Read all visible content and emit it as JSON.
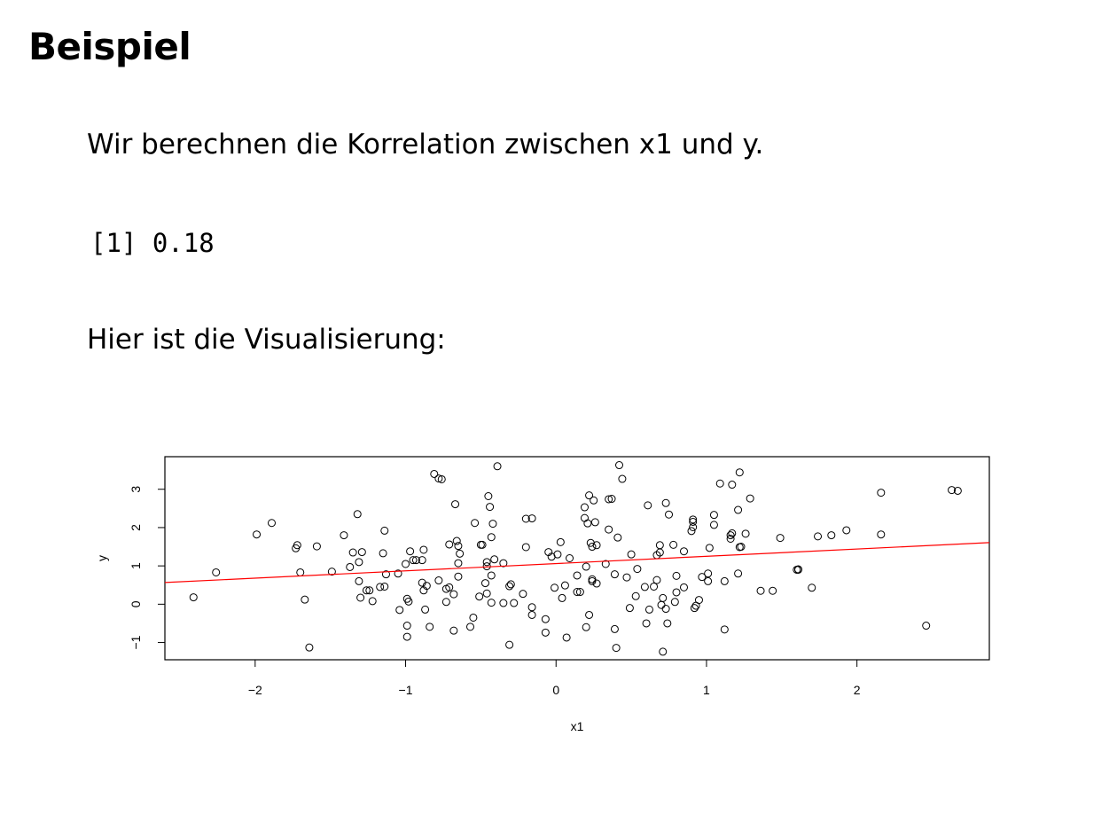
{
  "slide": {
    "title": "Beispiel",
    "intro": "Wir berechnen die Korrelation zwischen x1 und y.",
    "output": "[1] 0.18",
    "viz_intro": "Hier ist die Visualisierung:"
  },
  "colors": {
    "points": "#000000",
    "regression_line": "#ff0000",
    "background": "#ffffff"
  },
  "chart_data": {
    "type": "scatter",
    "title": "",
    "xlabel": "x1",
    "ylabel": "y",
    "xlim": [
      -2.6,
      2.88
    ],
    "ylim": [
      -1.45,
      3.85
    ],
    "xticks": [
      -2,
      -1,
      0,
      1,
      2
    ],
    "xtick_labels": [
      "−2",
      "−1",
      "0",
      "1",
      "2"
    ],
    "yticks": [
      -1,
      0,
      1,
      2,
      3
    ],
    "ytick_labels": [
      "−1",
      "0",
      "1",
      "2",
      "3"
    ],
    "regression_line": {
      "intercept": 1.06,
      "slope": 0.19
    },
    "grid": false,
    "points": [
      [
        -2.41,
        0.18
      ],
      [
        -2.26,
        0.83
      ],
      [
        -1.99,
        1.82
      ],
      [
        -1.89,
        2.12
      ],
      [
        -1.73,
        1.46
      ],
      [
        -1.72,
        1.54
      ],
      [
        -1.7,
        0.83
      ],
      [
        -1.67,
        0.12
      ],
      [
        -1.64,
        -1.13
      ],
      [
        -1.59,
        1.51
      ],
      [
        -1.49,
        0.85
      ],
      [
        -1.41,
        1.8
      ],
      [
        -1.37,
        0.97
      ],
      [
        -1.35,
        1.35
      ],
      [
        -1.32,
        2.35
      ],
      [
        -1.31,
        0.6
      ],
      [
        -1.31,
        1.1
      ],
      [
        -1.29,
        1.36
      ],
      [
        -1.3,
        0.17
      ],
      [
        -1.26,
        0.36
      ],
      [
        -1.24,
        0.36
      ],
      [
        -1.22,
        0.08
      ],
      [
        -1.17,
        0.45
      ],
      [
        -1.15,
        1.33
      ],
      [
        -1.14,
        1.92
      ],
      [
        -1.14,
        0.46
      ],
      [
        -1.13,
        0.78
      ],
      [
        -1.05,
        0.8
      ],
      [
        -1.04,
        -0.15
      ],
      [
        -1.0,
        1.05
      ],
      [
        -0.99,
        0.14
      ],
      [
        -0.99,
        -0.85
      ],
      [
        -0.99,
        -0.56
      ],
      [
        -0.98,
        0.07
      ],
      [
        -0.97,
        1.38
      ],
      [
        -0.95,
        1.15
      ],
      [
        -0.93,
        1.15
      ],
      [
        -0.89,
        1.15
      ],
      [
        -0.89,
        0.56
      ],
      [
        -0.88,
        1.42
      ],
      [
        -0.88,
        0.36
      ],
      [
        -0.87,
        -0.14
      ],
      [
        -0.86,
        0.48
      ],
      [
        -0.84,
        -0.59
      ],
      [
        -0.81,
        3.4
      ],
      [
        -0.78,
        0.62
      ],
      [
        -0.78,
        3.28
      ],
      [
        -0.76,
        3.26
      ],
      [
        -0.73,
        0.06
      ],
      [
        -0.73,
        0.4
      ],
      [
        -0.71,
        0.44
      ],
      [
        -0.71,
        1.56
      ],
      [
        -0.68,
        0.26
      ],
      [
        -0.68,
        -0.69
      ],
      [
        -0.67,
        2.61
      ],
      [
        -0.66,
        1.65
      ],
      [
        -0.65,
        1.52
      ],
      [
        -0.65,
        0.72
      ],
      [
        -0.65,
        1.07
      ],
      [
        -0.64,
        1.32
      ],
      [
        -0.57,
        -0.59
      ],
      [
        -0.55,
        -0.35
      ],
      [
        -0.54,
        2.12
      ],
      [
        -0.51,
        0.2
      ],
      [
        -0.5,
        1.55
      ],
      [
        -0.49,
        1.55
      ],
      [
        -0.47,
        0.55
      ],
      [
        -0.46,
        0.99
      ],
      [
        -0.46,
        1.1
      ],
      [
        -0.46,
        0.28
      ],
      [
        -0.45,
        2.82
      ],
      [
        -0.44,
        2.54
      ],
      [
        -0.43,
        1.75
      ],
      [
        -0.43,
        0.04
      ],
      [
        -0.42,
        2.1
      ],
      [
        -0.41,
        1.17
      ],
      [
        -0.43,
        0.75
      ],
      [
        -0.39,
        3.6
      ],
      [
        -0.35,
        1.07
      ],
      [
        -0.35,
        0.03
      ],
      [
        -0.31,
        -1.06
      ],
      [
        -0.31,
        0.47
      ],
      [
        -0.3,
        0.52
      ],
      [
        -0.28,
        0.03
      ],
      [
        -0.22,
        0.27
      ],
      [
        -0.2,
        1.49
      ],
      [
        -0.2,
        2.23
      ],
      [
        -0.16,
        2.24
      ],
      [
        -0.16,
        -0.28
      ],
      [
        -0.16,
        -0.08
      ],
      [
        -0.07,
        -0.39
      ],
      [
        -0.07,
        -0.74
      ],
      [
        -0.05,
        1.36
      ],
      [
        -0.03,
        1.24
      ],
      [
        -0.01,
        0.43
      ],
      [
        0.01,
        1.3
      ],
      [
        0.03,
        1.62
      ],
      [
        0.04,
        0.16
      ],
      [
        0.06,
        0.49
      ],
      [
        0.07,
        -0.87
      ],
      [
        0.09,
        1.2
      ],
      [
        0.14,
        0.75
      ],
      [
        0.14,
        0.32
      ],
      [
        0.16,
        0.32
      ],
      [
        0.19,
        2.25
      ],
      [
        0.19,
        2.53
      ],
      [
        0.2,
        0.98
      ],
      [
        0.2,
        -0.6
      ],
      [
        0.21,
        2.11
      ],
      [
        0.22,
        -0.28
      ],
      [
        0.22,
        2.84
      ],
      [
        0.23,
        1.6
      ],
      [
        0.24,
        1.5
      ],
      [
        0.24,
        0.6
      ],
      [
        0.24,
        0.65
      ],
      [
        0.25,
        2.71
      ],
      [
        0.26,
        2.14
      ],
      [
        0.27,
        1.54
      ],
      [
        0.27,
        0.54
      ],
      [
        0.33,
        1.05
      ],
      [
        0.35,
        1.95
      ],
      [
        0.35,
        2.74
      ],
      [
        0.37,
        2.75
      ],
      [
        0.39,
        -0.65
      ],
      [
        0.39,
        0.78
      ],
      [
        0.4,
        -1.14
      ],
      [
        0.41,
        1.74
      ],
      [
        0.42,
        3.63
      ],
      [
        0.44,
        3.27
      ],
      [
        0.47,
        0.7
      ],
      [
        0.49,
        -0.1
      ],
      [
        0.5,
        1.3
      ],
      [
        0.53,
        0.21
      ],
      [
        0.54,
        0.92
      ],
      [
        0.59,
        0.45
      ],
      [
        0.6,
        -0.5
      ],
      [
        0.61,
        2.58
      ],
      [
        0.62,
        -0.14
      ],
      [
        0.65,
        0.46
      ],
      [
        0.67,
        1.28
      ],
      [
        0.67,
        0.63
      ],
      [
        0.69,
        1.35
      ],
      [
        0.69,
        1.54
      ],
      [
        0.7,
        -0.02
      ],
      [
        0.71,
        0.16
      ],
      [
        0.71,
        -1.24
      ],
      [
        0.73,
        -0.12
      ],
      [
        0.73,
        2.64
      ],
      [
        0.74,
        -0.5
      ],
      [
        0.75,
        2.34
      ],
      [
        0.78,
        1.55
      ],
      [
        0.79,
        0.06
      ],
      [
        0.8,
        0.31
      ],
      [
        0.8,
        0.74
      ],
      [
        0.85,
        1.38
      ],
      [
        0.85,
        0.44
      ],
      [
        0.9,
        1.91
      ],
      [
        0.91,
        2.01
      ],
      [
        0.91,
        2.21
      ],
      [
        0.91,
        2.15
      ],
      [
        0.92,
        -0.1
      ],
      [
        0.93,
        -0.04
      ],
      [
        0.95,
        0.11
      ],
      [
        0.97,
        0.71
      ],
      [
        1.01,
        0.6
      ],
      [
        1.01,
        0.8
      ],
      [
        1.02,
        1.47
      ],
      [
        1.05,
        2.33
      ],
      [
        1.05,
        2.07
      ],
      [
        1.09,
        3.15
      ],
      [
        1.12,
        0.6
      ],
      [
        1.12,
        -0.66
      ],
      [
        1.16,
        1.8
      ],
      [
        1.16,
        1.71
      ],
      [
        1.17,
        3.12
      ],
      [
        1.17,
        1.85
      ],
      [
        1.21,
        0.8
      ],
      [
        1.21,
        2.46
      ],
      [
        1.22,
        3.44
      ],
      [
        1.22,
        1.49
      ],
      [
        1.23,
        1.5
      ],
      [
        1.26,
        1.84
      ],
      [
        1.29,
        2.76
      ],
      [
        1.36,
        0.35
      ],
      [
        1.44,
        0.35
      ],
      [
        1.49,
        1.73
      ],
      [
        1.6,
        0.9
      ],
      [
        1.61,
        0.9
      ],
      [
        1.61,
        0.91
      ],
      [
        1.7,
        0.43
      ],
      [
        1.74,
        1.77
      ],
      [
        1.83,
        1.8
      ],
      [
        1.93,
        1.93
      ],
      [
        2.16,
        1.82
      ],
      [
        2.16,
        2.91
      ],
      [
        2.46,
        -0.56
      ],
      [
        2.63,
        2.98
      ],
      [
        2.67,
        2.96
      ]
    ]
  }
}
